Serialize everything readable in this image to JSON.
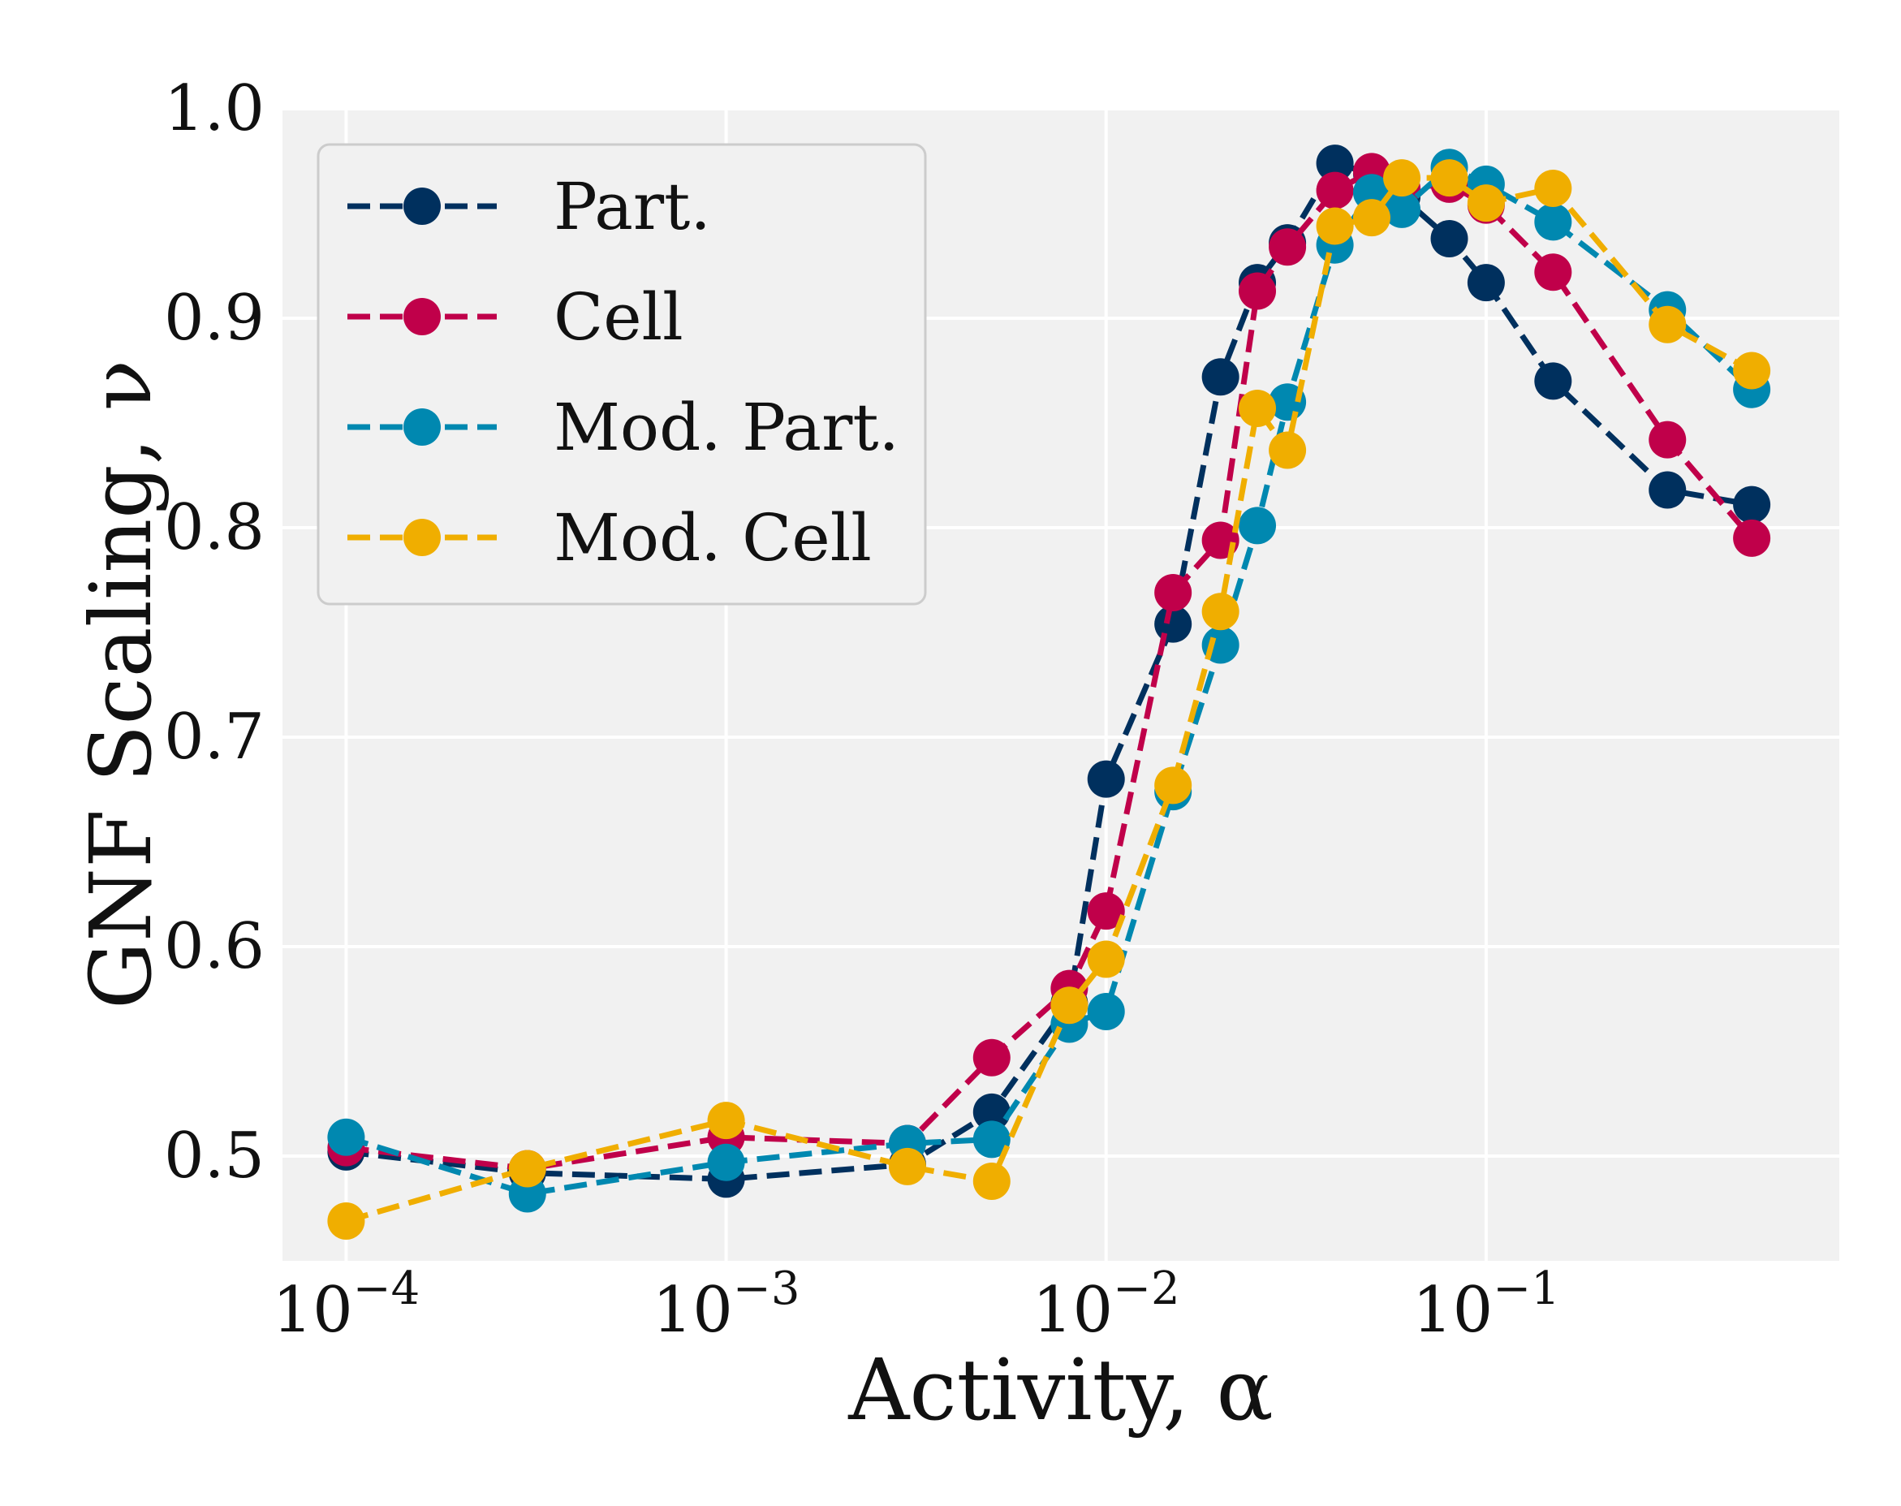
{
  "chart_data": {
    "type": "line",
    "xlabel": "Activity, α",
    "ylabel": "GNF Scaling, ν",
    "xscale": "log",
    "xlim": [
      6.8e-05,
      0.85
    ],
    "ylim": [
      0.45,
      1.0
    ],
    "yticks": [
      0.5,
      0.6,
      0.7,
      0.8,
      0.9,
      1.0
    ],
    "ytick_labels": [
      "0.5",
      "0.6",
      "0.7",
      "0.8",
      "0.9",
      "1.0"
    ],
    "xticks": [
      0.0001,
      0.001,
      0.01,
      0.1
    ],
    "xtick_labels": [
      {
        "base": "10",
        "exp": "−4"
      },
      {
        "base": "10",
        "exp": "−3"
      },
      {
        "base": "10",
        "exp": "−2"
      },
      {
        "base": "10",
        "exp": "−1"
      }
    ],
    "grid": true,
    "legend_position": "top-left",
    "x": [
      0.0001,
      0.0003,
      0.001,
      0.003,
      0.005,
      0.008,
      0.01,
      0.015,
      0.02,
      0.025,
      0.03,
      0.04,
      0.05,
      0.06,
      0.08,
      0.1,
      0.15,
      0.3,
      0.5
    ],
    "series": [
      {
        "name": "Part.",
        "color": "#00305e",
        "values": [
          0.502,
          0.492,
          0.489,
          0.496,
          0.521,
          0.573,
          0.68,
          0.754,
          0.872,
          0.917,
          0.936,
          0.974,
          0.969,
          0.958,
          0.938,
          0.917,
          0.87,
          0.818,
          0.811
        ]
      },
      {
        "name": "Cell",
        "color": "#c0004a",
        "values": [
          0.504,
          0.494,
          0.509,
          0.506,
          0.547,
          0.58,
          0.617,
          0.769,
          0.794,
          0.913,
          0.934,
          0.961,
          0.97,
          0.962,
          0.964,
          0.954,
          0.922,
          0.842,
          0.795
        ]
      },
      {
        "name": "Mod. Part.",
        "color": "#0088b0",
        "values": [
          0.509,
          0.482,
          0.497,
          0.506,
          0.508,
          0.563,
          0.569,
          0.674,
          0.744,
          0.801,
          0.86,
          0.935,
          0.96,
          0.952,
          0.972,
          0.964,
          0.946,
          0.904,
          0.866
        ]
      },
      {
        "name": "Mod. Cell",
        "color": "#f0ae00",
        "values": [
          0.469,
          0.494,
          0.517,
          0.495,
          0.488,
          0.572,
          0.594,
          0.677,
          0.76,
          0.857,
          0.837,
          0.944,
          0.948,
          0.967,
          0.967,
          0.955,
          0.962,
          0.897,
          0.875
        ]
      }
    ]
  }
}
